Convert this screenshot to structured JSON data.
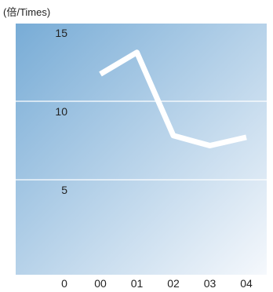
{
  "chart_data": {
    "type": "line",
    "title": "",
    "unit_label": "(倍/Times)",
    "xlabel": "",
    "ylabel": "",
    "categories": [
      "00",
      "01",
      "02",
      "03",
      "04"
    ],
    "origin_label": "0",
    "y_ticks": [
      5,
      10,
      15
    ],
    "ylim": [
      0,
      15
    ],
    "grid": true,
    "legend": "none",
    "series": [
      {
        "values": [
          12.2,
          13.5,
          8.5,
          7.9,
          8.4
        ]
      }
    ],
    "colors": {
      "line": "#ffffff",
      "background_start": "#78acd6",
      "background_end": "#f5f8fc",
      "grid": "#ffffff"
    }
  }
}
